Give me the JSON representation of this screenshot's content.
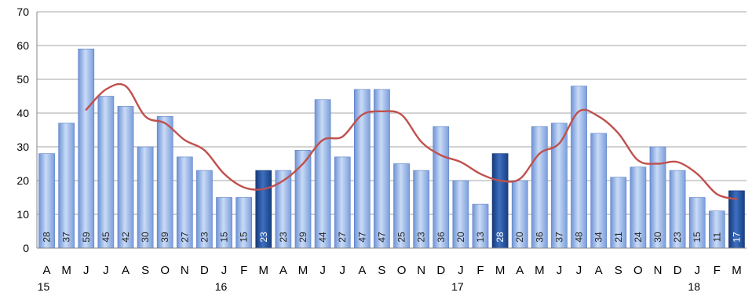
{
  "chart_data": {
    "type": "bar",
    "categories": [
      "A",
      "M",
      "J",
      "J",
      "A",
      "S",
      "O",
      "N",
      "D",
      "J",
      "F",
      "M",
      "A",
      "M",
      "J",
      "J",
      "A",
      "S",
      "O",
      "N",
      "D",
      "J",
      "F",
      "M",
      "A",
      "M",
      "J",
      "J",
      "A",
      "S",
      "O",
      "N",
      "D",
      "J",
      "F",
      "M"
    ],
    "year_labels": [
      {
        "index": 0,
        "label": "15"
      },
      {
        "index": 9,
        "label": "16"
      },
      {
        "index": 21,
        "label": "17"
      },
      {
        "index": 33,
        "label": "18"
      }
    ],
    "series": [
      {
        "type": "bar",
        "values": [
          28,
          37,
          59,
          45,
          42,
          30,
          39,
          27,
          23,
          15,
          15,
          23,
          23,
          29,
          44,
          27,
          47,
          47,
          25,
          23,
          36,
          20,
          13,
          28,
          20,
          36,
          37,
          48,
          34,
          21,
          24,
          30,
          23,
          15,
          11,
          17
        ],
        "highlight_indices": [
          11,
          23,
          35
        ],
        "color": "#8fb0e6",
        "highlight_color": "#1f4e96"
      },
      {
        "type": "line",
        "values": [
          null,
          null,
          41,
          47,
          48,
          39,
          37,
          32,
          29,
          22,
          18,
          17.5,
          20,
          25,
          32,
          33,
          39.5,
          40.5,
          39.5,
          31.5,
          27.5,
          25.5,
          22,
          20,
          20.5,
          28,
          31,
          40.5,
          39,
          34,
          26,
          25,
          25.5,
          22,
          16,
          14.5
        ],
        "color": "#c0504d"
      }
    ],
    "ylim": [
      0,
      70
    ],
    "yticks": [
      0,
      10,
      20,
      30,
      40,
      50,
      60,
      70
    ],
    "grid": true,
    "legend": "none"
  }
}
